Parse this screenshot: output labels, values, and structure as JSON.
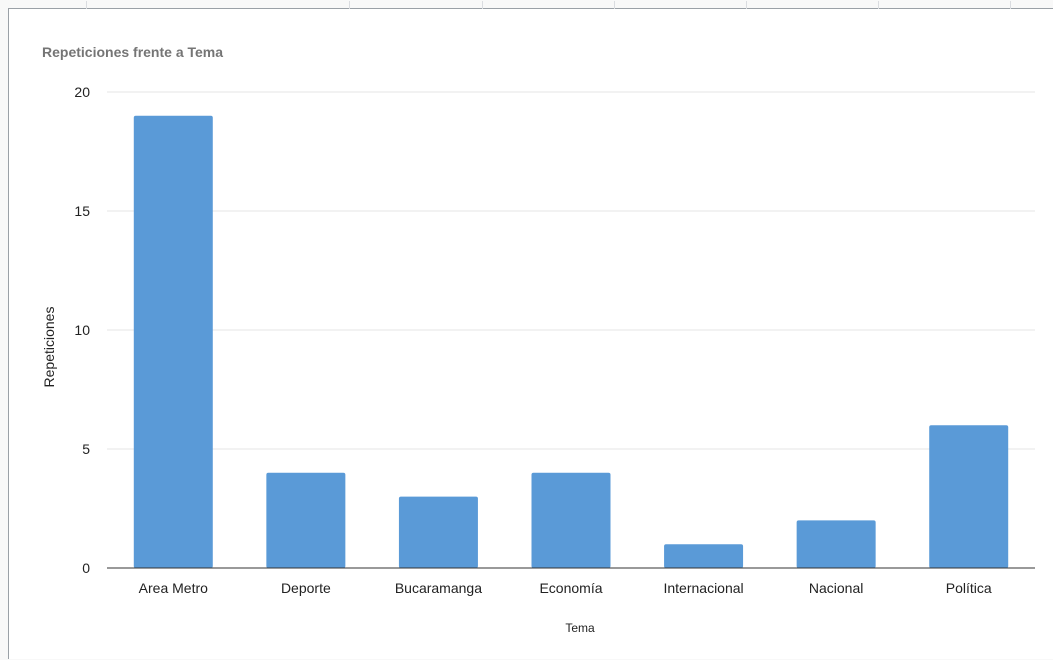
{
  "chart_data": {
    "type": "bar",
    "title": "Repeticiones frente a Tema",
    "xlabel": "Tema",
    "ylabel": "Repeticiones",
    "categories": [
      "Area Metro",
      "Deporte",
      "Bucaramanga",
      "Economía",
      "Internacional",
      "Nacional",
      "Política"
    ],
    "values": [
      19,
      4,
      3,
      4,
      1,
      2,
      6
    ],
    "ylim": [
      0,
      20
    ],
    "yticks": [
      "0",
      "5",
      "10",
      "15",
      "20"
    ],
    "grid": true,
    "legend": "none",
    "colors": {
      "bar": "#5a9ad7",
      "title": "#757575",
      "axis_text": "#222222",
      "gridline": "#e6e6e6",
      "baseline": "#333333"
    }
  }
}
